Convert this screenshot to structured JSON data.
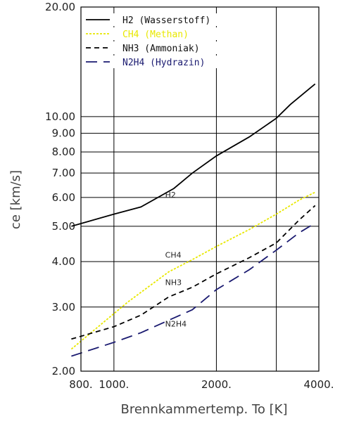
{
  "chart_data": {
    "type": "line",
    "xlabel": "Brennkammertemp. To [K]",
    "ylabel": "ce [km/s]",
    "xscale": "log",
    "yscale": "log",
    "xlim": [
      800,
      4000
    ],
    "ylim": [
      2.0,
      20.0
    ],
    "grid": true,
    "legend_position": "top-left",
    "x_ticks": [
      {
        "value": 800,
        "label": "800."
      },
      {
        "value": 1000,
        "label": "1000."
      },
      {
        "value": 2000,
        "label": "2000."
      },
      {
        "value": 4000,
        "label": "4000."
      }
    ],
    "x_gridlines": [
      800,
      1000,
      2000,
      3000,
      4000
    ],
    "y_ticks": [
      {
        "value": 2,
        "label": "2.00"
      },
      {
        "value": 3,
        "label": "3.00"
      },
      {
        "value": 4,
        "label": "4.00"
      },
      {
        "value": 5,
        "label": "5.00"
      },
      {
        "value": 6,
        "label": "6.00"
      },
      {
        "value": 7,
        "label": "7.00"
      },
      {
        "value": 8,
        "label": "8.00"
      },
      {
        "value": 9,
        "label": "9.00"
      },
      {
        "value": 10,
        "label": "10.00"
      },
      {
        "value": 20,
        "label": "20.00"
      }
    ],
    "series": [
      {
        "name": "H2 (Wasserstoff)",
        "color": "#000000",
        "dash": "solid",
        "annotation": "H2",
        "x": [
          750,
          1000,
          1200,
          1500,
          1700,
          2000,
          2500,
          3000,
          3300,
          3900
        ],
        "y": [
          5.0,
          5.4,
          5.65,
          6.35,
          7.0,
          7.8,
          8.8,
          9.9,
          10.8,
          12.3
        ]
      },
      {
        "name": "CH4 (Methan)",
        "color": "#e8e800",
        "dash": "dotted",
        "annotation": "CH4",
        "x": [
          750,
          1100,
          1450,
          1700,
          2000,
          2500,
          3000,
          3500,
          3900
        ],
        "y": [
          2.3,
          3.1,
          3.75,
          4.05,
          4.4,
          4.9,
          5.4,
          5.9,
          6.2
        ]
      },
      {
        "name": "NH3 (Ammoniak)",
        "color": "#000000",
        "dash": "dashed",
        "annotation": "NH3",
        "x": [
          750,
          1000,
          1200,
          1450,
          1700,
          2000,
          2500,
          3000,
          3500,
          3900
        ],
        "y": [
          2.45,
          2.65,
          2.85,
          3.2,
          3.4,
          3.7,
          4.1,
          4.5,
          5.2,
          5.7
        ]
      },
      {
        "name": "N2H4 (Hydrazin)",
        "color": "#1a1a70",
        "dash": "longdash",
        "annotation": "N2H4",
        "x": [
          750,
          1000,
          1200,
          1500,
          1700,
          2000,
          2500,
          3000,
          3500,
          3900
        ],
        "y": [
          2.2,
          2.4,
          2.55,
          2.8,
          2.95,
          3.35,
          3.8,
          4.3,
          4.8,
          5.1
        ]
      }
    ]
  }
}
